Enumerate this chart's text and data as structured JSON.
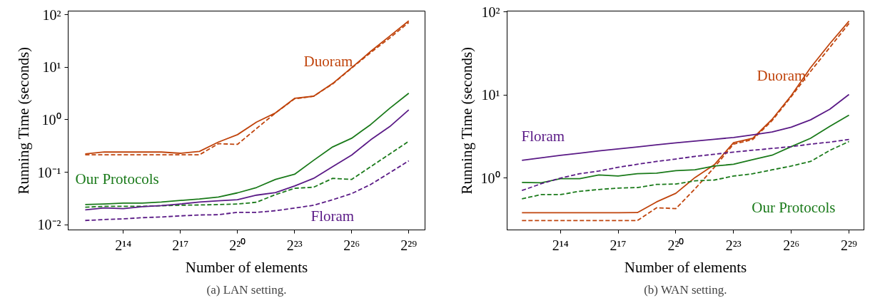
{
  "chart_data": [
    {
      "type": "line",
      "title": "(a) LAN setting.",
      "xlabel": "Number of elements",
      "ylabel": "Running Time (seconds)",
      "log": "xy",
      "grid": false,
      "marker": "none",
      "x": [
        4096,
        8192,
        16384,
        32768,
        65536,
        131072,
        262144,
        524288,
        1048576,
        2097152,
        4194304,
        8388608,
        16777216,
        33554432,
        67108864,
        134217728,
        268435456,
        536870912
      ],
      "xlim": [
        2200,
        970000000
      ],
      "ylim": [
        0.008,
        117
      ],
      "xticks": [
        {
          "value": 16384,
          "label": "2¹⁴"
        },
        {
          "value": 131072,
          "label": "2¹⁷"
        },
        {
          "value": 1048576,
          "label": "2²⁰"
        },
        {
          "value": 8388608,
          "label": "2²³"
        },
        {
          "value": 67108864,
          "label": "2²⁶"
        },
        {
          "value": 536870912,
          "label": "2²⁹"
        }
      ],
      "yticks": [
        {
          "value": 0.01,
          "label": "10⁻²"
        },
        {
          "value": 0.1,
          "label": "10⁻¹"
        },
        {
          "value": 1,
          "label": "10⁰"
        },
        {
          "value": 10,
          "label": "10¹"
        },
        {
          "value": 100,
          "label": "10²"
        }
      ],
      "series": [
        {
          "name": "Duoram",
          "color": "#c0440c",
          "line_style": "solid",
          "values": [
            0.223,
            0.243,
            0.243,
            0.243,
            0.243,
            0.23,
            0.25,
            0.376,
            0.52,
            0.9,
            1.35,
            2.55,
            2.8,
            4.9,
            9.8,
            20,
            39,
            76
          ]
        },
        {
          "color": "#c0440c",
          "line_style": "dashed",
          "values": [
            0.215,
            0.215,
            0.215,
            0.215,
            0.215,
            0.215,
            0.215,
            0.35,
            0.34,
            0.68,
            1.35,
            2.5,
            2.8,
            4.8,
            9.6,
            19,
            36,
            71
          ]
        },
        {
          "name": "Our Protocols",
          "color": "#1a7a1a",
          "line_style": "solid",
          "values": [
            0.0243,
            0.0249,
            0.0259,
            0.0259,
            0.0272,
            0.0291,
            0.031,
            0.0339,
            0.0406,
            0.0513,
            0.0733,
            0.0915,
            0.169,
            0.304,
            0.444,
            0.81,
            1.65,
            3.2
          ]
        },
        {
          "color": "#1a7a1a",
          "line_style": "dashed",
          "values": [
            0.0216,
            0.0225,
            0.0225,
            0.0225,
            0.0231,
            0.0236,
            0.0239,
            0.0243,
            0.0249,
            0.0269,
            0.0376,
            0.0496,
            0.052,
            0.0766,
            0.0731,
            0.128,
            0.223,
            0.389
          ]
        },
        {
          "name": "Floram",
          "color": "#5a1a86",
          "line_style": "solid",
          "values": [
            0.0193,
            0.021,
            0.0204,
            0.0222,
            0.0232,
            0.0249,
            0.0272,
            0.0286,
            0.03,
            0.0367,
            0.041,
            0.0548,
            0.0766,
            0.128,
            0.213,
            0.415,
            0.74,
            1.54
          ]
        },
        {
          "color": "#5a1a86",
          "line_style": "dashed",
          "values": [
            0.0121,
            0.0126,
            0.013,
            0.0137,
            0.0141,
            0.0148,
            0.0154,
            0.0156,
            0.0173,
            0.0173,
            0.0186,
            0.0208,
            0.0236,
            0.03,
            0.0393,
            0.0586,
            0.098,
            0.165
          ]
        }
      ]
    },
    {
      "type": "line",
      "title": "(b) WAN setting.",
      "xlabel": "Number of elements",
      "ylabel": "Running Time (seconds)",
      "log": "xy",
      "grid": false,
      "marker": "none",
      "x": [
        4096,
        8192,
        16384,
        32768,
        65536,
        131072,
        262144,
        524288,
        1048576,
        2097152,
        4194304,
        8388608,
        16777216,
        33554432,
        67108864,
        134217728,
        268435456,
        536870912
      ],
      "xlim": [
        2400,
        920000000
      ],
      "ylim": [
        0.238,
        103
      ],
      "xticks": [
        {
          "value": 16384,
          "label": "2¹⁴"
        },
        {
          "value": 131072,
          "label": "2¹⁷"
        },
        {
          "value": 1048576,
          "label": "2²⁰"
        },
        {
          "value": 8388608,
          "label": "2²³"
        },
        {
          "value": 67108864,
          "label": "2²⁶"
        },
        {
          "value": 536870912,
          "label": "2²⁹"
        }
      ],
      "yticks": [
        {
          "value": 1,
          "label": "10⁰"
        },
        {
          "value": 10,
          "label": "10¹"
        },
        {
          "value": 100,
          "label": "10²"
        }
      ],
      "series": [
        {
          "name": "Duoram",
          "color": "#c0440c",
          "line_style": "solid",
          "values": [
            0.383,
            0.383,
            0.383,
            0.383,
            0.383,
            0.383,
            0.385,
            0.518,
            0.657,
            1.02,
            1.45,
            2.68,
            3.02,
            5.1,
            9.9,
            21.4,
            41.7,
            78
          ]
        },
        {
          "color": "#c0440c",
          "line_style": "dashed",
          "values": [
            0.308,
            0.308,
            0.308,
            0.308,
            0.308,
            0.308,
            0.308,
            0.44,
            0.43,
            0.745,
            1.35,
            2.57,
            2.92,
            4.93,
            9.6,
            19.3,
            37.5,
            73
          ]
        },
        {
          "name": "Our Protocols",
          "color": "#1a7a1a",
          "line_style": "solid",
          "values": [
            0.888,
            0.88,
            0.986,
            0.986,
            1.095,
            1.06,
            1.13,
            1.15,
            1.23,
            1.26,
            1.4,
            1.47,
            1.67,
            1.89,
            2.4,
            3.02,
            4.2,
            5.75
          ]
        },
        {
          "color": "#1a7a1a",
          "line_style": "dashed",
          "values": [
            0.564,
            0.634,
            0.634,
            0.695,
            0.73,
            0.76,
            0.77,
            0.84,
            0.85,
            0.93,
            0.95,
            1.06,
            1.13,
            1.26,
            1.4,
            1.59,
            2.16,
            2.76
          ]
        },
        {
          "name": "Floram",
          "color": "#5a1a86",
          "line_style": "solid",
          "values": [
            1.64,
            1.76,
            1.88,
            2.0,
            2.13,
            2.25,
            2.38,
            2.52,
            2.66,
            2.8,
            2.94,
            3.09,
            3.33,
            3.6,
            4.11,
            5.04,
            6.75,
            10.2
          ]
        },
        {
          "color": "#5a1a86",
          "line_style": "dashed",
          "values": [
            0.71,
            0.857,
            1.0,
            1.13,
            1.22,
            1.35,
            1.47,
            1.59,
            1.7,
            1.83,
            1.94,
            2.06,
            2.17,
            2.28,
            2.4,
            2.57,
            2.72,
            2.92
          ]
        }
      ]
    }
  ]
}
